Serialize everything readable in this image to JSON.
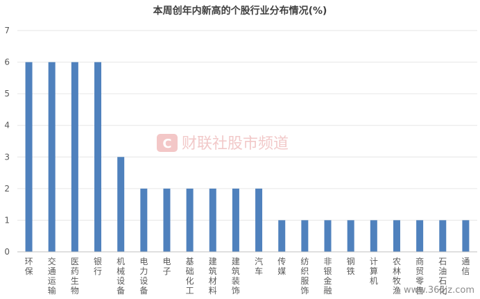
{
  "chart_data": {
    "type": "bar",
    "title": "本周创年内新高的个股行业分布情况(%)",
    "categories": [
      "环保",
      "交通运输",
      "医药生物",
      "银行",
      "机械设备",
      "电力设备",
      "电子",
      "基础化工",
      "建筑材料",
      "建筑装饰",
      "汽车",
      "传媒",
      "纺织服饰",
      "非银金融",
      "钢铁",
      "计算机",
      "农林牧渔",
      "商贸零售",
      "石油石化",
      "通信"
    ],
    "values": [
      6,
      6,
      6,
      6,
      3,
      2,
      2,
      2,
      2,
      2,
      2,
      1,
      1,
      1,
      1,
      1,
      1,
      1,
      1,
      1
    ],
    "ylim": [
      0,
      7
    ],
    "yticks": [
      0,
      1,
      2,
      3,
      4,
      5,
      6,
      7
    ],
    "grid": true,
    "bar_color": "#4f81bd"
  },
  "watermark": {
    "logo_letter": "C",
    "text": "财联社股市频道"
  },
  "site_mark": "www.365jz.com"
}
